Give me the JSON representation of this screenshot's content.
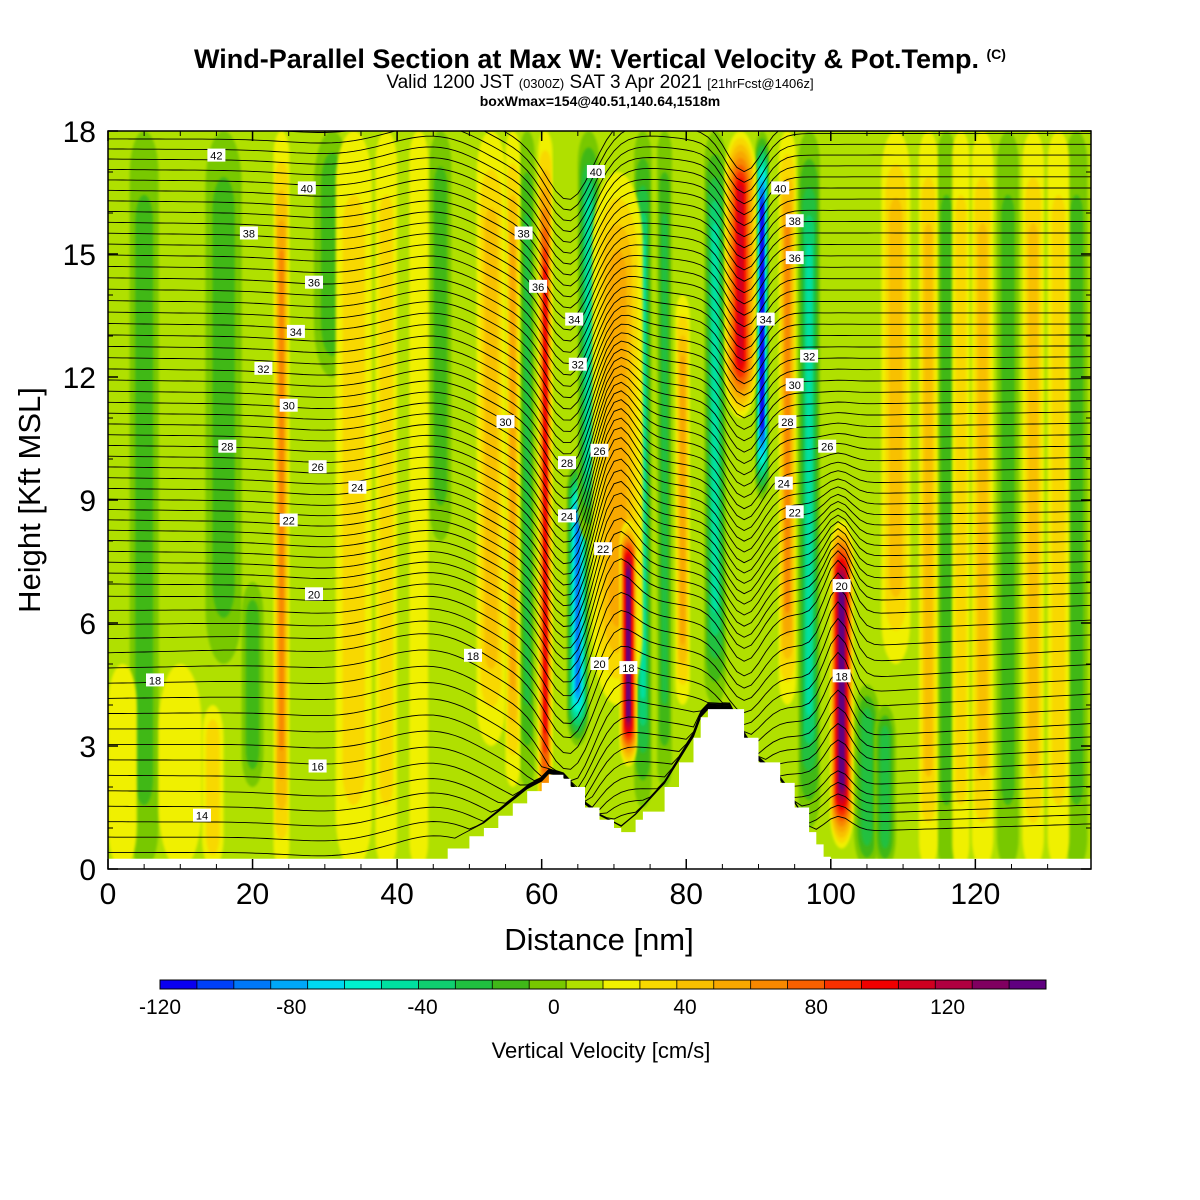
{
  "header": {
    "title": "Wind-Parallel Section at Max W: Vertical Velocity & Pot.Temp.",
    "copyright": "(C)",
    "valid_prefix": "Valid 1200 JST",
    "utc_time": "(0300Z)",
    "valid_date": "SAT 3 Apr 2021",
    "forecast_info": "[21hrFcst@1406z]",
    "box_info": "boxWmax=154@40.51,140.64,1518m"
  },
  "chart_data": {
    "type": "heatmap",
    "xlabel": "Distance [nm]",
    "ylabel": "Height [Kft MSL]",
    "xlim": [
      0,
      136
    ],
    "ylim": [
      0,
      18
    ],
    "x_ticks": [
      "0",
      "20",
      "40",
      "60",
      "80",
      "100",
      "120"
    ],
    "y_ticks": [
      "0",
      "3",
      "6",
      "9",
      "12",
      "15",
      "18"
    ],
    "colorbar": {
      "title": "Vertical Velocity [cm/s]",
      "min": -120,
      "max": 150,
      "step": 10,
      "tick_labels": [
        "-120",
        "-80",
        "-40",
        "0",
        "40",
        "80",
        "120"
      ],
      "colors": [
        "#0a00f0",
        "#0040f8",
        "#0078f8",
        "#00a8f8",
        "#00d8f0",
        "#00f0d0",
        "#00e0a0",
        "#10d070",
        "#20c040",
        "#40b818",
        "#78c800",
        "#b0e000",
        "#f0f000",
        "#f8d800",
        "#f8c000",
        "#f8a800",
        "#f88800",
        "#f86000",
        "#f83000",
        "#f00000",
        "#d00020",
        "#b00040",
        "#800060",
        "#600080"
      ]
    },
    "terrain": [
      [
        44,
        0
      ],
      [
        45,
        0.25
      ],
      [
        47,
        0.5
      ],
      [
        50,
        0.8
      ],
      [
        52,
        1.0
      ],
      [
        54,
        1.3
      ],
      [
        56,
        1.6
      ],
      [
        58,
        1.9
      ],
      [
        60,
        2.1
      ],
      [
        61,
        2.3
      ],
      [
        63,
        2.2
      ],
      [
        64,
        2.0
      ],
      [
        66,
        1.5
      ],
      [
        68,
        1.2
      ],
      [
        70,
        1.0
      ],
      [
        71,
        0.9
      ],
      [
        73,
        1.2
      ],
      [
        74,
        1.4
      ],
      [
        77,
        2.0
      ],
      [
        79,
        2.6
      ],
      [
        81,
        3.2
      ],
      [
        82,
        3.7
      ],
      [
        83,
        3.9
      ],
      [
        86,
        3.9
      ],
      [
        88,
        3.2
      ],
      [
        90,
        2.6
      ],
      [
        93,
        2.1
      ],
      [
        95,
        1.5
      ],
      [
        97,
        0.9
      ],
      [
        98,
        0.6
      ],
      [
        99,
        0.3
      ],
      [
        100,
        0
      ]
    ],
    "updrafts": [
      {
        "x": 2,
        "width": 2.0,
        "z0": 0,
        "z1": 5,
        "value": 10
      },
      {
        "x": 10,
        "width": 3.0,
        "z0": 0,
        "z1": 5,
        "value": 10
      },
      {
        "x": 14.5,
        "width": 1.5,
        "z0": 0,
        "z1": 4,
        "value": 20
      },
      {
        "x": 24,
        "width": 1.1,
        "z0": 0,
        "z1": 18,
        "value": 50
      },
      {
        "x": 34,
        "width": 2.5,
        "z0": 0,
        "z1": 18,
        "value": 20
      },
      {
        "x": 38.5,
        "width": 1.5,
        "z0": 0,
        "z1": 18,
        "value": 25
      },
      {
        "x": 43,
        "width": 1.3,
        "z0": 0,
        "z1": 18,
        "value": 15
      },
      {
        "x": 53,
        "width": 2.0,
        "z0": 3,
        "z1": 18,
        "value": 30
      },
      {
        "x": 56,
        "width": 1.0,
        "z0": 2,
        "z1": 18,
        "value": 45
      },
      {
        "x": 60.5,
        "width": 1.0,
        "z0": 0,
        "z1": 18,
        "value": 80
      },
      {
        "x": 70.5,
        "width": 3.5,
        "z0": 4,
        "z1": 17,
        "value": 40
      },
      {
        "x": 72,
        "width": 1.2,
        "z0": 2.5,
        "z1": 8.5,
        "value": 120
      },
      {
        "x": 79.5,
        "width": 1.0,
        "z0": 4,
        "z1": 14,
        "value": 45
      },
      {
        "x": 87.5,
        "width": 2.2,
        "z0": 11,
        "z1": 18,
        "value": 90
      },
      {
        "x": 94,
        "width": 1.2,
        "z0": 4,
        "z1": 18,
        "value": 50
      },
      {
        "x": 101.5,
        "width": 1.6,
        "z0": 0.5,
        "z1": 8.5,
        "value": 130
      },
      {
        "x": 109,
        "width": 2.0,
        "z0": 5,
        "z1": 18,
        "value": 30
      },
      {
        "x": 113.5,
        "width": 1.3,
        "z0": 0,
        "z1": 18,
        "value": 35
      },
      {
        "x": 118,
        "width": 1.2,
        "z0": 0,
        "z1": 18,
        "value": 20
      },
      {
        "x": 121,
        "width": 1.5,
        "z0": 0,
        "z1": 18,
        "value": 30
      },
      {
        "x": 128,
        "width": 1.5,
        "z0": 0,
        "z1": 18,
        "value": 30
      },
      {
        "x": 131.5,
        "width": 1.5,
        "z0": 0,
        "z1": 18,
        "value": 25
      }
    ],
    "downdrafts": [
      {
        "x": 5,
        "width": 2.0,
        "z0": 0,
        "z1": 18,
        "value": -20
      },
      {
        "x": 16,
        "width": 2.5,
        "z0": 5,
        "z1": 18,
        "value": -20
      },
      {
        "x": 20,
        "width": 1.5,
        "z0": 2,
        "z1": 7,
        "value": -20
      },
      {
        "x": 31,
        "width": 2.5,
        "z0": 12,
        "z1": 18,
        "value": -20
      },
      {
        "x": 46,
        "width": 1.5,
        "z0": 8,
        "z1": 18,
        "value": -20
      },
      {
        "x": 58,
        "width": 1.0,
        "z0": 2,
        "z1": 18,
        "value": -30
      },
      {
        "x": 65,
        "width": 1.5,
        "z0": 3,
        "z1": 10,
        "value": -90
      },
      {
        "x": 66.5,
        "width": 1.5,
        "z0": 8,
        "z1": 18,
        "value": -50
      },
      {
        "x": 74,
        "width": 1.2,
        "z0": 1.5,
        "z1": 18,
        "value": -50
      },
      {
        "x": 77,
        "width": 1.0,
        "z0": 2,
        "z1": 18,
        "value": -30
      },
      {
        "x": 84,
        "width": 1.5,
        "z0": 4,
        "z1": 18,
        "value": -50
      },
      {
        "x": 90.5,
        "width": 0.9,
        "z0": 9,
        "z1": 18,
        "value": -110
      },
      {
        "x": 97,
        "width": 1.5,
        "z0": 1,
        "z1": 18,
        "value": -50
      },
      {
        "x": 105,
        "width": 1.8,
        "z0": 0,
        "z1": 4.5,
        "value": -35
      },
      {
        "x": 107.5,
        "width": 1.5,
        "z0": 0,
        "z1": 4,
        "value": -30
      },
      {
        "x": 116,
        "width": 1.3,
        "z0": 0,
        "z1": 18,
        "value": -25
      },
      {
        "x": 124.5,
        "width": 1.5,
        "z0": 0,
        "z1": 18,
        "value": -25
      },
      {
        "x": 134,
        "width": 1.5,
        "z0": 0,
        "z1": 18,
        "value": -20
      }
    ],
    "theta_levels": [
      14,
      16,
      18,
      20,
      22,
      24,
      26,
      28,
      30,
      32,
      34,
      36,
      38,
      40,
      42
    ],
    "theta_profile_x": [
      0,
      20,
      40,
      50,
      56,
      60,
      64,
      68,
      72,
      76,
      80,
      84,
      88,
      92,
      96,
      100,
      104,
      110,
      120,
      136
    ],
    "theta_base": [
      [
        0.4,
        2.7,
        5.0,
        7.1,
        8.6,
        10.2,
        11.8,
        13.5,
        15.2,
        16.8,
        18.3
      ],
      [
        0.4,
        2.6,
        5.2,
        7.0,
        8.5,
        10.1,
        11.7,
        13.4,
        15.1,
        16.7,
        18.3
      ],
      [
        0.9,
        2.2,
        4.3,
        6.7,
        8.2,
        9.8,
        11.5,
        13.2,
        14.9,
        16.6,
        18.2
      ],
      [
        1.1,
        2.5,
        4.7,
        6.9,
        8.3,
        9.9,
        11.6,
        13.2,
        14.9,
        16.6,
        18.2
      ]
    ],
    "contour_labels": [
      {
        "text": "42",
        "x": 15,
        "z": 17.4
      },
      {
        "text": "40",
        "x": 27.5,
        "z": 16.6
      },
      {
        "text": "38",
        "x": 19.5,
        "z": 15.5
      },
      {
        "text": "36",
        "x": 28.5,
        "z": 14.3
      },
      {
        "text": "34",
        "x": 26,
        "z": 13.1
      },
      {
        "text": "32",
        "x": 21.5,
        "z": 12.2
      },
      {
        "text": "30",
        "x": 25,
        "z": 11.3
      },
      {
        "text": "28",
        "x": 16.5,
        "z": 10.3
      },
      {
        "text": "26",
        "x": 29,
        "z": 9.8
      },
      {
        "text": "24",
        "x": 34.5,
        "z": 9.3
      },
      {
        "text": "22",
        "x": 25,
        "z": 8.5
      },
      {
        "text": "20",
        "x": 28.5,
        "z": 6.7
      },
      {
        "text": "18",
        "x": 6.5,
        "z": 4.6
      },
      {
        "text": "18",
        "x": 50.5,
        "z": 5.2
      },
      {
        "text": "16",
        "x": 29,
        "z": 2.5
      },
      {
        "text": "14",
        "x": 13,
        "z": 1.3
      },
      {
        "text": "40",
        "x": 67.5,
        "z": 17.0
      },
      {
        "text": "38",
        "x": 57.5,
        "z": 15.5
      },
      {
        "text": "36",
        "x": 59.5,
        "z": 14.2
      },
      {
        "text": "34",
        "x": 64.5,
        "z": 13.4
      },
      {
        "text": "32",
        "x": 65,
        "z": 12.3
      },
      {
        "text": "30",
        "x": 55,
        "z": 10.9
      },
      {
        "text": "28",
        "x": 63.5,
        "z": 9.9
      },
      {
        "text": "26",
        "x": 68,
        "z": 10.2
      },
      {
        "text": "24",
        "x": 63.5,
        "z": 8.6
      },
      {
        "text": "22",
        "x": 68.5,
        "z": 7.8
      },
      {
        "text": "20",
        "x": 68,
        "z": 5.0
      },
      {
        "text": "18",
        "x": 72,
        "z": 4.9
      },
      {
        "text": "40",
        "x": 93,
        "z": 16.6
      },
      {
        "text": "38",
        "x": 95,
        "z": 15.8
      },
      {
        "text": "36",
        "x": 95,
        "z": 14.9
      },
      {
        "text": "34",
        "x": 91,
        "z": 13.4
      },
      {
        "text": "32",
        "x": 97,
        "z": 12.5
      },
      {
        "text": "30",
        "x": 95,
        "z": 11.8
      },
      {
        "text": "28",
        "x": 94,
        "z": 10.9
      },
      {
        "text": "26",
        "x": 99.5,
        "z": 10.3
      },
      {
        "text": "24",
        "x": 93.5,
        "z": 9.4
      },
      {
        "text": "22",
        "x": 95,
        "z": 8.7
      },
      {
        "text": "20",
        "x": 101.5,
        "z": 6.9
      },
      {
        "text": "18",
        "x": 101.5,
        "z": 4.7
      }
    ]
  }
}
